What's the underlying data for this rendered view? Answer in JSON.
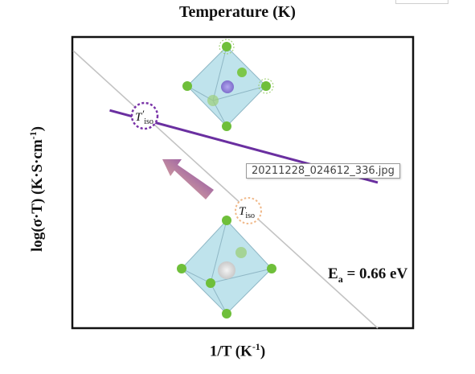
{
  "chart_data": {
    "type": "line",
    "title": "Temperature (K)",
    "xlabel": "1/T (K",
    "xlabel_sup": "-1",
    "xlabel_end": ")",
    "ylabel_parts": [
      "log(σ·T) (K·S·cm",
      "-1",
      ")"
    ],
    "xlim": [
      0,
      1
    ],
    "ylim": [
      0,
      1
    ],
    "grid": false,
    "series": [
      {
        "id": "gray",
        "color": "#c3c3c3",
        "x": [
          0.0,
          1.0
        ],
        "y": [
          1.0,
          0.0
        ]
      },
      {
        "id": "purple",
        "color": "#6a2fa0",
        "x": [
          0.12,
          1.0
        ],
        "y": [
          0.785,
          0.525
        ]
      }
    ],
    "annotations": {
      "tiso_prime": {
        "main": "T",
        "prime": "′",
        "sub": "iso",
        "color": "#7a34a8"
      },
      "tiso": {
        "main": "T",
        "sub": "iso",
        "color": "#f0b98a"
      },
      "activation": {
        "main": "E",
        "sub": "a",
        "rest": " = 0.66 eV"
      }
    },
    "colors": {
      "octahedron_fill": "#a9d9e6",
      "ligand": "#6fbf3a",
      "center_upper": "#8e7fd1",
      "center_lower": "#d8d8d8",
      "arrow_start": "#f6c79a",
      "arrow_end": "#7a3aa8"
    }
  },
  "tooltip": {
    "text": "20211228_024612_336.jpg"
  }
}
